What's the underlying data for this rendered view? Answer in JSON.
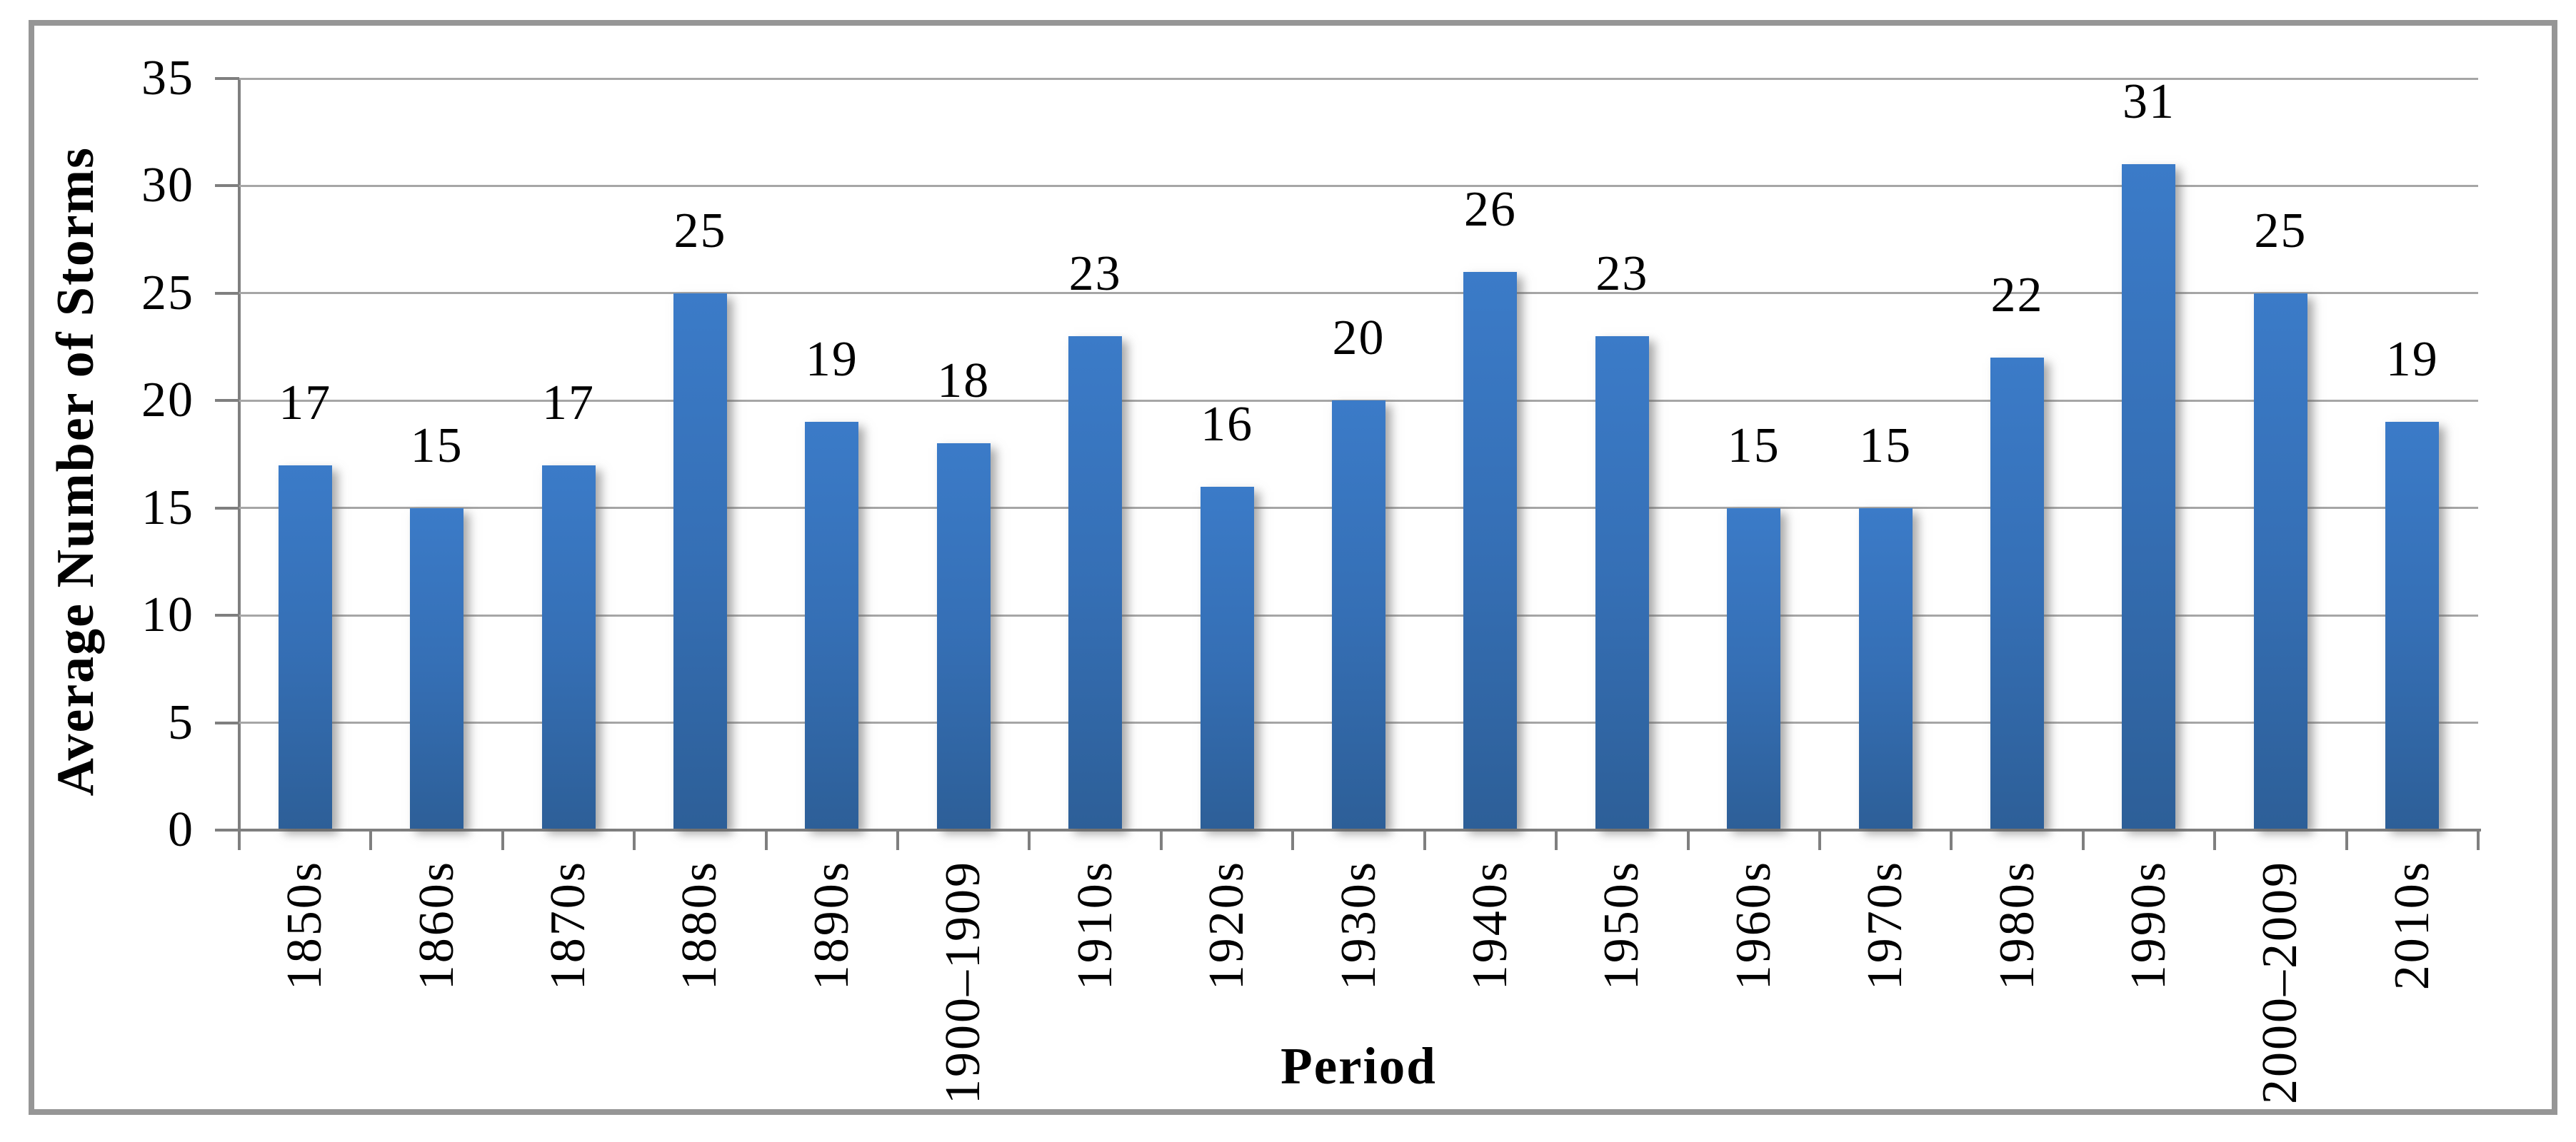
{
  "chart_data": {
    "type": "bar",
    "title": "",
    "categories": [
      "1850s",
      "1860s",
      "1870s",
      "1880s",
      "1890s",
      "1900–1909",
      "1910s",
      "1920s",
      "1930s",
      "1940s",
      "1950s",
      "1960s",
      "1970s",
      "1980s",
      "1990s",
      "2000–2009",
      "2010s"
    ],
    "values": [
      17,
      15,
      17,
      25,
      19,
      18,
      23,
      16,
      20,
      26,
      23,
      15,
      15,
      22,
      31,
      25,
      19
    ],
    "xlabel": "Period",
    "ylabel": "Average Number of Storms",
    "ylim": [
      0,
      35
    ],
    "y_ticks": [
      0,
      5,
      10,
      15,
      20,
      25,
      30,
      35
    ],
    "grid": true,
    "legend": "none",
    "data_labels": true,
    "colors": {
      "bar_top": "#3B7BC8",
      "bar_mid": "#356FB5",
      "bar_bottom": "#2D5F98",
      "gridline": "#A6A6A6",
      "axis": "#7F7F7F",
      "frame_border": "#969696",
      "label_text": "#000000"
    }
  }
}
